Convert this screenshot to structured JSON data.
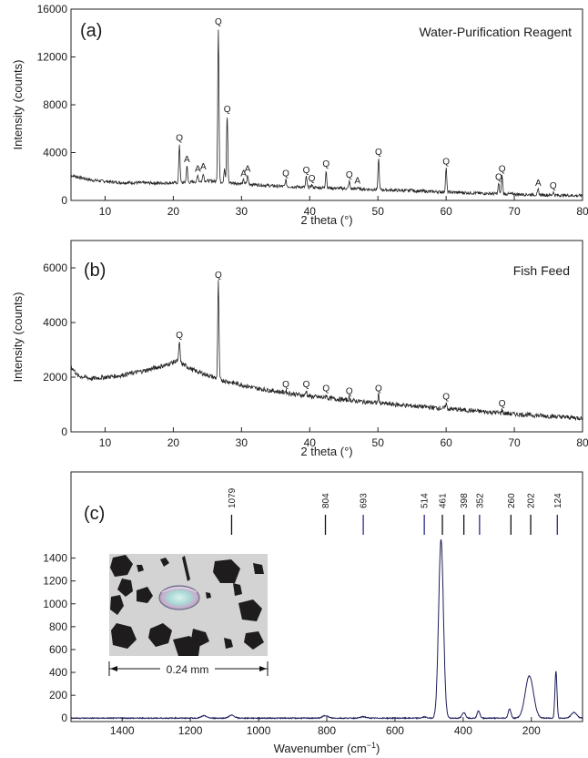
{
  "chart_data": [
    {
      "type": "line",
      "panel": "(a)",
      "title": "Water-Purification  Reagent",
      "xlabel": "2 theta (°)",
      "ylabel": "Intensity (counts)",
      "xlim": [
        5,
        80
      ],
      "ylim": [
        0,
        16000
      ],
      "xticks": [
        10,
        20,
        30,
        40,
        50,
        60,
        70,
        80
      ],
      "yticks": [
        0,
        4000,
        8000,
        12000,
        16000
      ],
      "background": [
        [
          5,
          2100
        ],
        [
          8,
          1700
        ],
        [
          12,
          1500
        ],
        [
          18,
          1450
        ],
        [
          22,
          1500
        ],
        [
          25,
          1650
        ],
        [
          28,
          1500
        ],
        [
          35,
          1200
        ],
        [
          45,
          1000
        ],
        [
          55,
          800
        ],
        [
          65,
          600
        ],
        [
          75,
          450
        ],
        [
          80,
          400
        ]
      ],
      "peaks": [
        {
          "x": 20.9,
          "y": 4700,
          "label": "Q"
        },
        {
          "x": 22.0,
          "y": 2900,
          "label": "A"
        },
        {
          "x": 23.6,
          "y": 2100,
          "label": "A"
        },
        {
          "x": 24.4,
          "y": 2300,
          "label": "A"
        },
        {
          "x": 26.6,
          "y": 14400,
          "label": "Q"
        },
        {
          "x": 27.5,
          "y": 2700,
          "label": ""
        },
        {
          "x": 27.9,
          "y": 7100,
          "label": "Q"
        },
        {
          "x": 30.3,
          "y": 1700,
          "label": "A"
        },
        {
          "x": 30.9,
          "y": 2100,
          "label": "A"
        },
        {
          "x": 36.5,
          "y": 1700,
          "label": "Q"
        },
        {
          "x": 39.5,
          "y": 2000,
          "label": "Q"
        },
        {
          "x": 40.3,
          "y": 1300,
          "label": "Q"
        },
        {
          "x": 42.4,
          "y": 2500,
          "label": "Q"
        },
        {
          "x": 45.8,
          "y": 1600,
          "label": "Q"
        },
        {
          "x": 47.0,
          "y": 1100,
          "label": "A"
        },
        {
          "x": 50.1,
          "y": 3500,
          "label": "Q"
        },
        {
          "x": 54.9,
          "y": 1000,
          "label": ""
        },
        {
          "x": 60.0,
          "y": 2700,
          "label": "Q"
        },
        {
          "x": 67.7,
          "y": 1400,
          "label": "Q"
        },
        {
          "x": 68.2,
          "y": 2100,
          "label": "Q"
        },
        {
          "x": 73.5,
          "y": 900,
          "label": "A"
        },
        {
          "x": 75.7,
          "y": 700,
          "label": "Q"
        }
      ]
    },
    {
      "type": "line",
      "panel": "(b)",
      "title": "Fish Feed",
      "xlabel": "2 theta (°)",
      "ylabel": "Intensity (counts)",
      "xlim": [
        5,
        80
      ],
      "ylim": [
        0,
        7000
      ],
      "xticks": [
        10,
        20,
        30,
        40,
        50,
        60,
        70,
        80
      ],
      "yticks": [
        0,
        2000,
        4000,
        6000
      ],
      "background": [
        [
          5,
          2400
        ],
        [
          6,
          2050
        ],
        [
          8,
          1950
        ],
        [
          12,
          2050
        ],
        [
          16,
          2250
        ],
        [
          19,
          2450
        ],
        [
          20.5,
          2600
        ],
        [
          23,
          2250
        ],
        [
          27,
          1900
        ],
        [
          32,
          1600
        ],
        [
          40,
          1300
        ],
        [
          50,
          1050
        ],
        [
          60,
          850
        ],
        [
          70,
          650
        ],
        [
          80,
          500
        ]
      ],
      "peaks": [
        {
          "x": 20.9,
          "y": 3300,
          "label": "Q"
        },
        {
          "x": 26.6,
          "y": 5500,
          "label": "Q"
        },
        {
          "x": 36.5,
          "y": 1500,
          "label": "Q"
        },
        {
          "x": 39.5,
          "y": 1500,
          "label": "Q"
        },
        {
          "x": 42.4,
          "y": 1350,
          "label": "Q"
        },
        {
          "x": 45.8,
          "y": 1250,
          "label": "Q"
        },
        {
          "x": 50.1,
          "y": 1350,
          "label": "Q"
        },
        {
          "x": 60.0,
          "y": 1050,
          "label": "Q"
        },
        {
          "x": 68.2,
          "y": 800,
          "label": "Q"
        }
      ]
    },
    {
      "type": "line",
      "panel": "(c)",
      "title": "",
      "xlabel": "Wavenumber (cm⁻¹)",
      "ylabel": "",
      "xlim": [
        1550,
        50
      ],
      "ylim": [
        -30,
        1580
      ],
      "xticks": [
        1400,
        1200,
        1000,
        800,
        600,
        400,
        200
      ],
      "yticks": [
        0,
        200,
        400,
        600,
        800,
        1000,
        1200,
        1400
      ],
      "reference_lines": [
        1079,
        804,
        693,
        514,
        461,
        398,
        352,
        260,
        202,
        124
      ],
      "reference_line_colors": [
        "#111111",
        "#111111",
        "#2a2a8a",
        "#2a2a8a",
        "#111111",
        "#111111",
        "#2a2a8a",
        "#111111",
        "#111111",
        "#2a2a8a"
      ],
      "peaks": [
        {
          "x": 1160,
          "y": 20,
          "w": 8
        },
        {
          "x": 1079,
          "y": 25,
          "w": 8
        },
        {
          "x": 804,
          "y": 22,
          "w": 8
        },
        {
          "x": 693,
          "y": 12,
          "w": 8
        },
        {
          "x": 514,
          "y": 10,
          "w": 6
        },
        {
          "x": 465,
          "y": 1560,
          "w": 7
        },
        {
          "x": 398,
          "y": 50,
          "w": 5
        },
        {
          "x": 355,
          "y": 65,
          "w": 4
        },
        {
          "x": 264,
          "y": 80,
          "w": 4
        },
        {
          "x": 206,
          "y": 370,
          "w": 12
        },
        {
          "x": 128,
          "y": 410,
          "w": 3
        },
        {
          "x": 75,
          "y": 50,
          "w": 8
        }
      ],
      "inset": {
        "scale_label": "0.24 mm"
      }
    }
  ]
}
